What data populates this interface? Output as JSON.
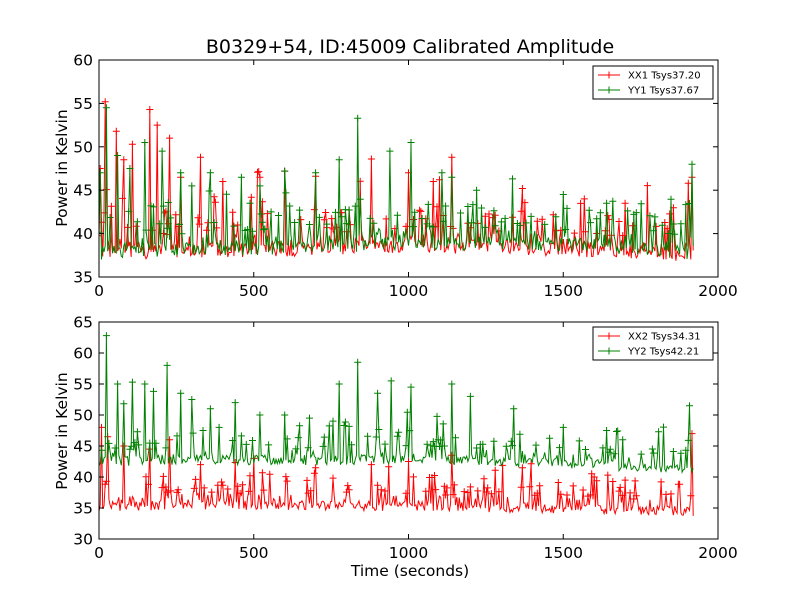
{
  "figure_title": "B0329+54, ID:45009 Calibrated Amplitude",
  "chart_data": [
    {
      "type": "line",
      "title": "B0329+54, ID:45009 Calibrated Amplitude",
      "xlabel": "",
      "ylabel": "Power in Kelvin",
      "xlim": [
        0,
        2000
      ],
      "ylim": [
        35,
        60
      ],
      "x_ticks": [
        "0",
        "500",
        "1000",
        "1500",
        "2000"
      ],
      "y_ticks": [
        "35",
        "40",
        "45",
        "50",
        "55",
        "60"
      ],
      "legend_position": "top-right",
      "grid": false,
      "series": [
        {
          "name": "XX1 Tsys37.20",
          "color": "#ff0000",
          "x_range": [
            0,
            1920
          ],
          "baseline": [
            [
              0,
              37.8
            ],
            [
              300,
              38.0
            ],
            [
              700,
              38.2
            ],
            [
              1000,
              38.6
            ],
            [
              1300,
              38.4
            ],
            [
              1600,
              38.0
            ],
            [
              1920,
              37.4
            ]
          ],
          "spike_peaks": [
            [
              5,
              47.5
            ],
            [
              22,
              55.2
            ],
            [
              55,
              51.8
            ],
            [
              80,
              48.5
            ],
            [
              110,
              50.3
            ],
            [
              165,
              54.3
            ],
            [
              190,
              52.5
            ],
            [
              230,
              51.0
            ],
            [
              265,
              46.5
            ],
            [
              330,
              48.8
            ],
            [
              400,
              46.0
            ],
            [
              520,
              46.5
            ],
            [
              600,
              47.2
            ],
            [
              700,
              46.6
            ],
            [
              880,
              48.6
            ],
            [
              1000,
              47.0
            ],
            [
              1080,
              46.0
            ],
            [
              1140,
              48.8
            ],
            [
              1370,
              45.2
            ],
            [
              1570,
              44.0
            ],
            [
              1700,
              43.5
            ],
            [
              1918,
              46.5
            ]
          ]
        },
        {
          "name": "YY1 Tsys37.67",
          "color": "#008000",
          "x_range": [
            0,
            1920
          ],
          "baseline": [
            [
              0,
              37.8
            ],
            [
              300,
              38.2
            ],
            [
              700,
              38.4
            ],
            [
              1000,
              39.0
            ],
            [
              1300,
              38.8
            ],
            [
              1600,
              38.6
            ],
            [
              1920,
              37.8
            ]
          ],
          "spike_peaks": [
            [
              5,
              47.0
            ],
            [
              25,
              54.5
            ],
            [
              60,
              49.0
            ],
            [
              100,
              47.5
            ],
            [
              150,
              50.5
            ],
            [
              205,
              49.5
            ],
            [
              265,
              47.0
            ],
            [
              300,
              45.5
            ],
            [
              360,
              47.0
            ],
            [
              460,
              46.5
            ],
            [
              520,
              45.5
            ],
            [
              600,
              47.2
            ],
            [
              700,
              47.0
            ],
            [
              775,
              48.5
            ],
            [
              835,
              53.3
            ],
            [
              940,
              49.5
            ],
            [
              1010,
              50.5
            ],
            [
              1110,
              47.0
            ],
            [
              1140,
              46.5
            ],
            [
              1220,
              45.0
            ],
            [
              1335,
              46.3
            ],
            [
              1500,
              44.5
            ],
            [
              1640,
              43.5
            ],
            [
              1915,
              48.0
            ]
          ]
        }
      ]
    },
    {
      "type": "line",
      "title": "",
      "xlabel": "Time (seconds)",
      "ylabel": "Power in Kelvin",
      "xlim": [
        0,
        2000
      ],
      "ylim": [
        30,
        65
      ],
      "x_ticks": [
        "0",
        "500",
        "1000",
        "1500",
        "2000"
      ],
      "y_ticks": [
        "30",
        "35",
        "40",
        "45",
        "50",
        "55",
        "60",
        "65"
      ],
      "legend_position": "top-right",
      "grid": false,
      "series": [
        {
          "name": "XX2 Tsys34.31",
          "color": "#ff0000",
          "x_range": [
            0,
            1920
          ],
          "baseline": [
            [
              0,
              35.2
            ],
            [
              300,
              35.6
            ],
            [
              700,
              35.4
            ],
            [
              1000,
              35.3
            ],
            [
              1300,
              35.1
            ],
            [
              1600,
              34.8
            ],
            [
              1920,
              34.4
            ]
          ],
          "spike_peaks": [
            [
              10,
              48.0
            ],
            [
              30,
              46.5
            ],
            [
              80,
              45.0
            ],
            [
              165,
              44.5
            ],
            [
              230,
              46.0
            ],
            [
              330,
              42.0
            ],
            [
              500,
              43.0
            ],
            [
              700,
              41.5
            ],
            [
              880,
              42.0
            ],
            [
              1000,
              42.5
            ],
            [
              1140,
              43.5
            ],
            [
              1370,
              41.5
            ],
            [
              1600,
              40.0
            ],
            [
              1700,
              39.5
            ],
            [
              1915,
              47.0
            ]
          ]
        },
        {
          "name": "YY2 Tsys42.21",
          "color": "#008000",
          "x_range": [
            0,
            1920
          ],
          "baseline": [
            [
              0,
              42.5
            ],
            [
              300,
              42.8
            ],
            [
              700,
              42.7
            ],
            [
              1000,
              42.9
            ],
            [
              1300,
              42.6
            ],
            [
              1600,
              42.0
            ],
            [
              1920,
              41.2
            ]
          ],
          "spike_peaks": [
            [
              25,
              62.8
            ],
            [
              60,
              55.0
            ],
            [
              80,
              51.8
            ],
            [
              110,
              55.3
            ],
            [
              150,
              55.0
            ],
            [
              175,
              53.8
            ],
            [
              220,
              58.0
            ],
            [
              265,
              53.5
            ],
            [
              300,
              52.5
            ],
            [
              360,
              51.0
            ],
            [
              440,
              52.0
            ],
            [
              520,
              50.0
            ],
            [
              600,
              50.0
            ],
            [
              680,
              49.5
            ],
            [
              775,
              55.0
            ],
            [
              835,
              58.5
            ],
            [
              900,
              53.5
            ],
            [
              945,
              55.5
            ],
            [
              1010,
              54.5
            ],
            [
              1140,
              55.0
            ],
            [
              1200,
              53.0
            ],
            [
              1340,
              51.0
            ],
            [
              1500,
              48.0
            ],
            [
              1640,
              47.5
            ],
            [
              1910,
              51.5
            ]
          ]
        }
      ]
    }
  ]
}
